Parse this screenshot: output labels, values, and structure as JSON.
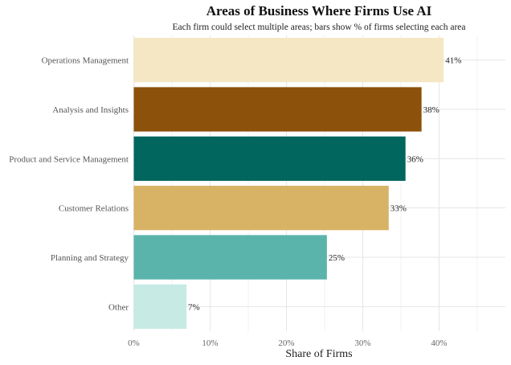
{
  "chart_data": {
    "type": "bar",
    "orientation": "horizontal",
    "title": "Areas of Business Where Firms Use AI",
    "subtitle": "Each firm could select multiple areas; bars show % of firms selecting each area",
    "xlabel": "Share of Firms",
    "ylabel": "",
    "categories": [
      "Operations Management",
      "Analysis and Insights",
      "Product and Service Management",
      "Customer Relations",
      "Planning and Strategy",
      "Other"
    ],
    "values": [
      40.6,
      37.7,
      35.6,
      33.4,
      25.3,
      6.9
    ],
    "data_labels": [
      "41%",
      "38%",
      "36%",
      "33%",
      "25%",
      "7%"
    ],
    "colors": [
      "#F5E6C4",
      "#8C510A",
      "#01665E",
      "#D8B365",
      "#5AB4AC",
      "#C7EAE5"
    ],
    "xlim": [
      0,
      48.7
    ],
    "x_ticks": [
      0,
      10,
      20,
      30,
      40
    ],
    "x_tick_labels": [
      "0%",
      "10%",
      "20%",
      "30%",
      "40%"
    ],
    "grid": true,
    "legend": "none"
  }
}
